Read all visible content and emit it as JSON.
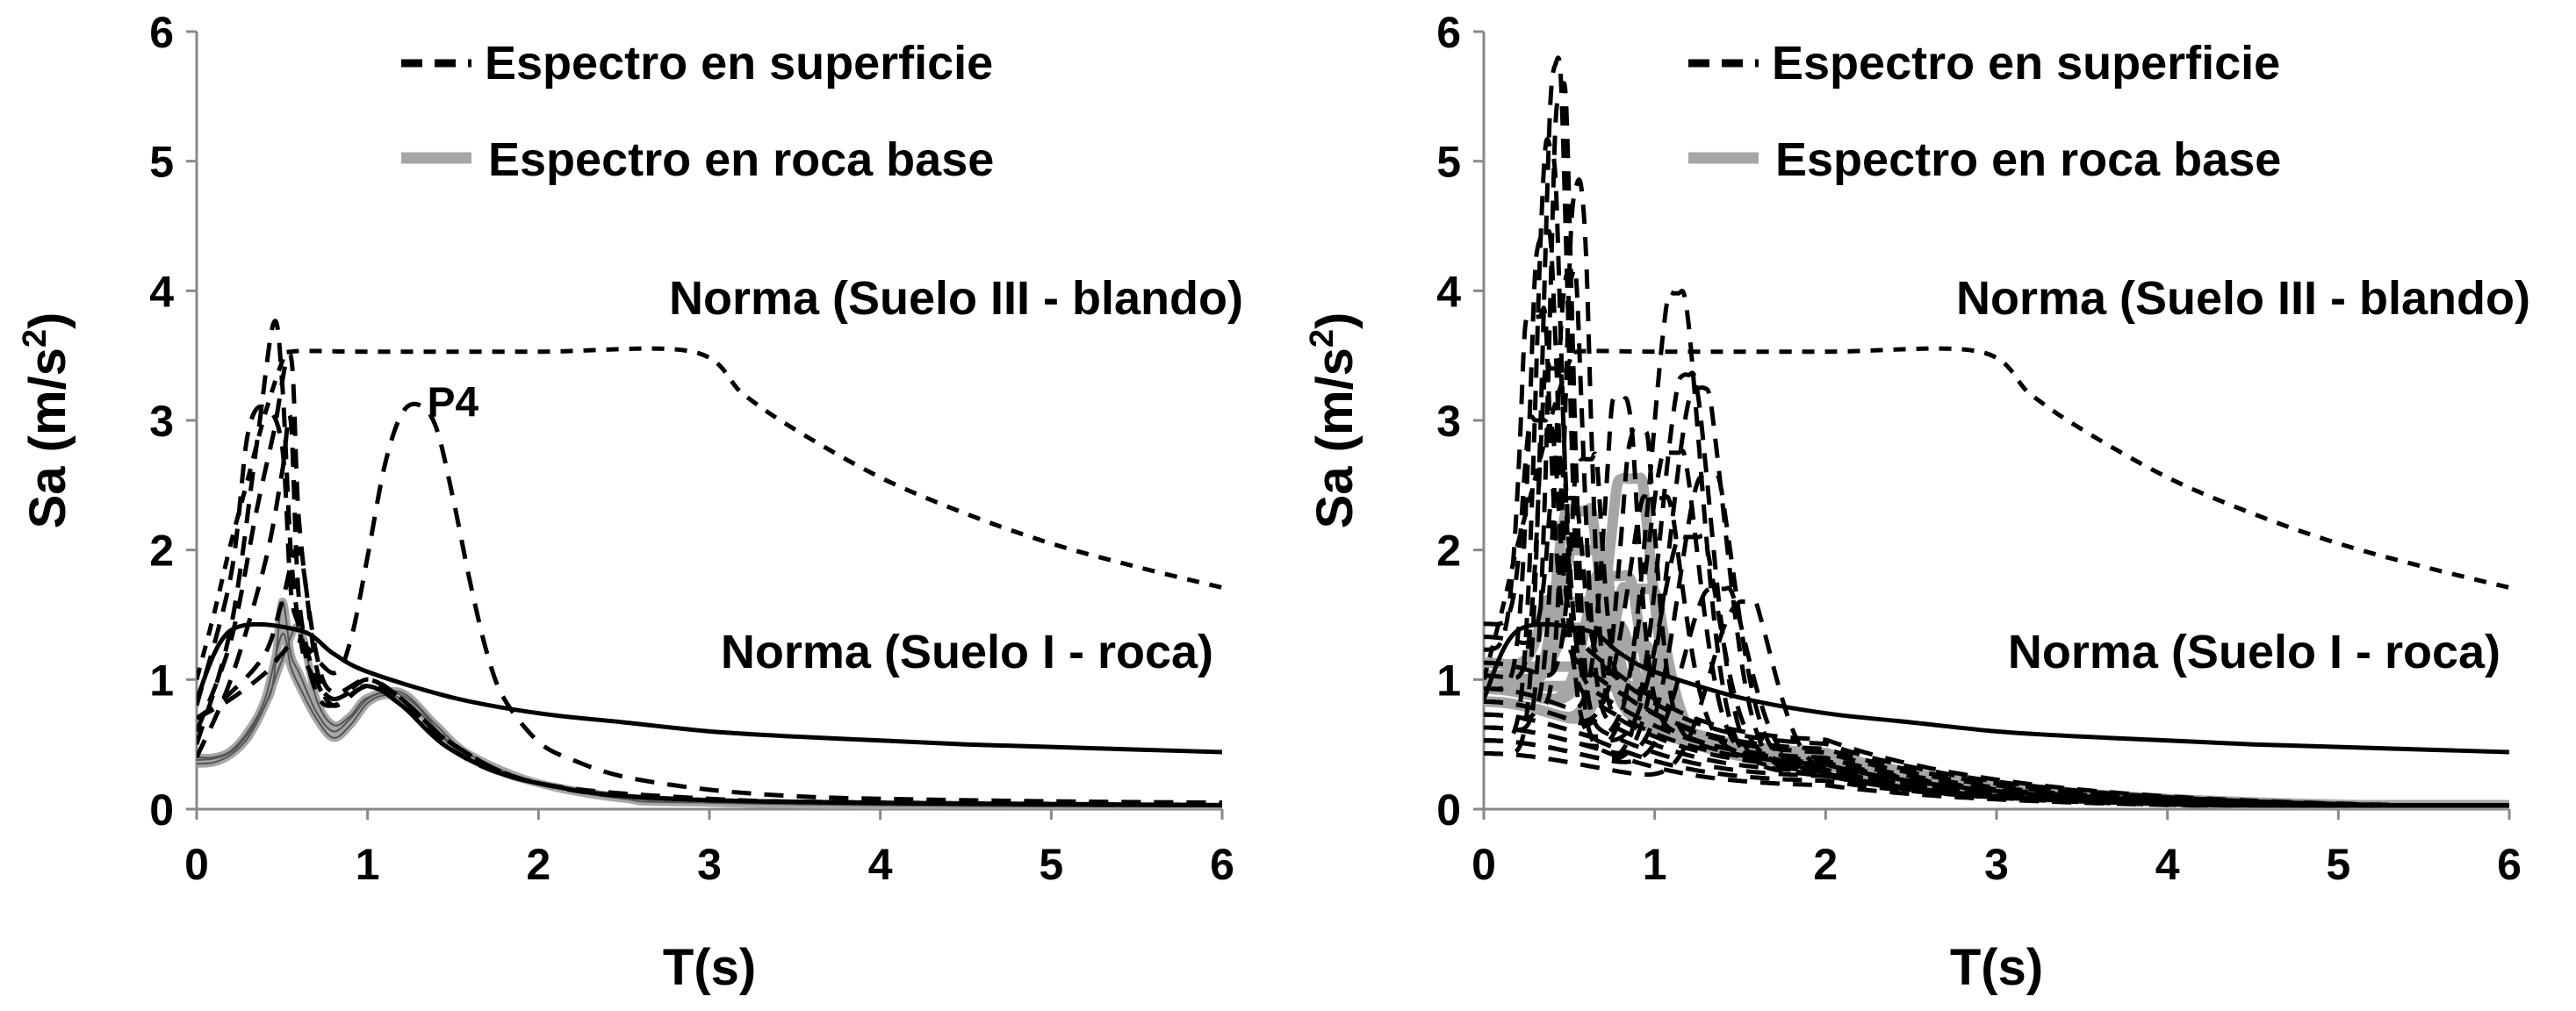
{
  "chart_data": [
    {
      "type": "line",
      "xlabel": "T(s)",
      "ylabel": "Sa (m/s²)",
      "ylabel_main": "Sa (m/s",
      "ylabel_sup": "2",
      "ylabel_end": ")",
      "xlim": [
        0,
        6
      ],
      "ylim": [
        0,
        6
      ],
      "xticks": [
        "0",
        "1",
        "2",
        "3",
        "4",
        "5",
        "6"
      ],
      "yticks": [
        "0",
        "1",
        "2",
        "3",
        "4",
        "5",
        "6"
      ],
      "legend": [
        {
          "label": "Espectro en superficie",
          "style": "dashed",
          "color": "#000000"
        },
        {
          "label": "Espectro en roca base",
          "style": "solid",
          "color": "#a6a6a6"
        }
      ],
      "legend_position": "top-right",
      "annotations": [
        {
          "text": "Norma (Suelo III - blando)",
          "x": 3.1,
          "y": 3.78
        },
        {
          "text": "Norma (Suelo I - roca)",
          "x": 3.9,
          "y": 1.05
        },
        {
          "text": "P4",
          "x": 1.4,
          "y": 2.95
        }
      ],
      "norma_suelo_III": {
        "x": [
          0,
          0.1,
          0.2,
          0.3,
          0.4,
          0.5,
          0.55,
          1.0,
          2.0,
          2.9,
          3.2,
          3.5,
          4.0,
          4.5,
          5.0,
          5.5,
          6.0
        ],
        "y": [
          1.0,
          1.5,
          2.05,
          2.55,
          3.05,
          3.45,
          3.53,
          3.53,
          3.53,
          3.53,
          3.2,
          2.93,
          2.56,
          2.28,
          2.05,
          1.87,
          1.71
        ]
      },
      "norma_suelo_I": {
        "x": [
          0,
          0.2,
          0.6,
          0.8,
          1.0,
          1.5,
          2.0,
          2.5,
          3.0,
          3.5,
          4.0,
          4.5,
          5.0,
          5.5,
          6.0
        ],
        "y": [
          0.85,
          1.38,
          1.38,
          1.2,
          1.06,
          0.86,
          0.74,
          0.67,
          0.6,
          0.56,
          0.53,
          0.5,
          0.48,
          0.46,
          0.44
        ]
      },
      "series": [
        {
          "style": "surface",
          "x": [
            0,
            0.2,
            0.35,
            0.45,
            0.5,
            0.55,
            0.6,
            0.65,
            0.8,
            1.0,
            1.2,
            1.5,
            2.0,
            3.0,
            4.0,
            6.0
          ],
          "y": [
            0.5,
            1.4,
            2.8,
            3.75,
            3.3,
            2.0,
            1.4,
            1.1,
            0.85,
            1.0,
            0.85,
            0.5,
            0.2,
            0.08,
            0.05,
            0.03
          ]
        },
        {
          "style": "surface",
          "x": [
            0,
            0.2,
            0.3,
            0.4,
            0.5,
            0.55,
            0.6,
            0.7,
            0.8,
            1.0,
            1.2,
            1.5,
            2.0,
            3.0,
            6.0
          ],
          "y": [
            0.8,
            1.8,
            2.9,
            3.1,
            2.8,
            1.7,
            1.4,
            0.9,
            0.8,
            0.95,
            0.85,
            0.45,
            0.2,
            0.07,
            0.03
          ]
        },
        {
          "style": "surface",
          "x": [
            0,
            0.2,
            0.35,
            0.45,
            0.55,
            0.6,
            0.7,
            0.8,
            1.0,
            1.2,
            1.5,
            2.0,
            3.0,
            6.0
          ],
          "y": [
            0.6,
            1.3,
            2.3,
            2.9,
            3.5,
            2.2,
            1.2,
            0.9,
            1.0,
            0.85,
            0.5,
            0.2,
            0.07,
            0.03
          ]
        },
        {
          "style": "surface",
          "x": [
            0,
            0.2,
            0.4,
            0.5,
            0.55,
            0.6,
            0.7,
            0.8,
            1.0,
            1.2,
            1.5,
            2.0,
            3.0,
            6.0
          ],
          "y": [
            0.4,
            1.0,
            1.9,
            2.6,
            3.0,
            1.6,
            1.0,
            0.85,
            0.95,
            0.8,
            0.45,
            0.2,
            0.07,
            0.03
          ]
        },
        {
          "style": "surface",
          "x": [
            0,
            0.2,
            0.4,
            0.5,
            0.6,
            0.7,
            0.8,
            1.0,
            1.2,
            1.5,
            2.0,
            3.0,
            6.0
          ],
          "y": [
            0.7,
            0.9,
            1.2,
            1.6,
            2.0,
            1.1,
            0.8,
            0.95,
            0.8,
            0.45,
            0.2,
            0.07,
            0.03
          ]
        },
        {
          "style": "surface",
          "label": "P4",
          "x": [
            0,
            0.2,
            0.4,
            0.5,
            0.6,
            0.8,
            0.9,
            1.0,
            1.1,
            1.2,
            1.3,
            1.4,
            1.5,
            1.6,
            1.7,
            1.8,
            2.0,
            2.2,
            2.5,
            3.0,
            3.5,
            4.0,
            5.0,
            6.0
          ],
          "y": [
            0.7,
            0.85,
            1.05,
            1.2,
            1.3,
            1.05,
            1.3,
            1.95,
            2.65,
            3.05,
            3.12,
            2.95,
            2.4,
            1.75,
            1.2,
            0.85,
            0.52,
            0.38,
            0.25,
            0.15,
            0.1,
            0.08,
            0.06,
            0.05
          ]
        },
        {
          "style": "rock",
          "x": [
            0,
            0.1,
            0.2,
            0.3,
            0.4,
            0.45,
            0.5,
            0.55,
            0.6,
            0.7,
            0.8,
            0.9,
            1.0,
            1.1,
            1.2,
            1.3,
            1.4,
            1.5,
            1.7,
            2.0,
            2.5,
            3.0,
            3.5,
            4.0,
            5.0,
            6.0
          ],
          "y": [
            0.35,
            0.36,
            0.42,
            0.55,
            0.8,
            1.0,
            1.6,
            1.2,
            1.05,
            0.75,
            0.6,
            0.7,
            0.85,
            0.9,
            0.88,
            0.78,
            0.62,
            0.5,
            0.35,
            0.2,
            0.09,
            0.05,
            0.04,
            0.03,
            0.02,
            0.02
          ]
        },
        {
          "style": "rock",
          "x": [
            0,
            0.1,
            0.2,
            0.3,
            0.4,
            0.5,
            0.55,
            0.6,
            0.7,
            0.8,
            0.9,
            1.0,
            1.1,
            1.2,
            1.3,
            1.5,
            1.7,
            2.0,
            2.5,
            3.0,
            4.0,
            6.0
          ],
          "y": [
            0.4,
            0.4,
            0.45,
            0.6,
            0.85,
            1.35,
            1.1,
            0.95,
            0.7,
            0.55,
            0.65,
            0.82,
            0.88,
            0.85,
            0.75,
            0.48,
            0.33,
            0.2,
            0.09,
            0.05,
            0.03,
            0.02
          ]
        },
        {
          "style": "rock",
          "x": [
            0,
            0.1,
            0.2,
            0.3,
            0.4,
            0.5,
            0.6,
            0.7,
            0.8,
            0.9,
            1.0,
            1.2,
            1.4,
            1.6,
            2.0,
            2.5,
            3.0,
            6.0
          ],
          "y": [
            0.38,
            0.39,
            0.44,
            0.58,
            0.8,
            1.15,
            1.4,
            0.85,
            0.65,
            0.72,
            0.86,
            0.9,
            0.65,
            0.42,
            0.2,
            0.08,
            0.05,
            0.02
          ]
        }
      ]
    },
    {
      "type": "line",
      "xlabel": "T(s)",
      "ylabel": "Sa (m/s²)",
      "ylabel_main": "Sa (m/s",
      "ylabel_sup": "2",
      "ylabel_end": ")",
      "xlim": [
        0,
        6
      ],
      "ylim": [
        0,
        6
      ],
      "xticks": [
        "0",
        "1",
        "2",
        "3",
        "4",
        "5",
        "6"
      ],
      "yticks": [
        "0",
        "1",
        "2",
        "3",
        "4",
        "5",
        "6"
      ],
      "legend": [
        {
          "label": "Espectro en superficie",
          "style": "dashed",
          "color": "#000000"
        },
        {
          "label": "Espectro en roca base",
          "style": "solid",
          "color": "#a6a6a6"
        }
      ],
      "legend_position": "top-right",
      "annotations": [
        {
          "text": "Norma (Suelo III - blando)",
          "x": 3.1,
          "y": 3.78
        },
        {
          "text": "Norma (Suelo I - roca)",
          "x": 3.9,
          "y": 1.05
        }
      ],
      "norma_suelo_III": {
        "x": [
          0,
          0.1,
          0.2,
          0.3,
          0.4,
          0.5,
          0.55,
          1.0,
          2.0,
          2.9,
          3.2,
          3.5,
          4.0,
          4.5,
          5.0,
          5.5,
          6.0
        ],
        "y": [
          1.0,
          1.5,
          2.05,
          2.55,
          3.05,
          3.45,
          3.53,
          3.53,
          3.53,
          3.53,
          3.2,
          2.93,
          2.56,
          2.28,
          2.05,
          1.87,
          1.71
        ]
      },
      "norma_suelo_I": {
        "x": [
          0,
          0.2,
          0.6,
          0.8,
          1.0,
          1.5,
          2.0,
          2.5,
          3.0,
          3.5,
          4.0,
          4.5,
          5.0,
          5.5,
          6.0
        ],
        "y": [
          0.85,
          1.38,
          1.38,
          1.2,
          1.06,
          0.86,
          0.74,
          0.67,
          0.6,
          0.56,
          0.53,
          0.5,
          0.48,
          0.46,
          0.44
        ]
      },
      "surface_peaks": [
        {
          "T": 0.42,
          "A": 5.55,
          "w": 0.1,
          "b": 0.4
        },
        {
          "T": 0.45,
          "A": 5.3,
          "w": 0.09,
          "b": 0.6
        },
        {
          "T": 0.38,
          "A": 4.9,
          "w": 0.1,
          "b": 0.5
        },
        {
          "T": 0.55,
          "A": 4.6,
          "w": 0.09,
          "b": 0.8
        },
        {
          "T": 0.35,
          "A": 4.2,
          "w": 0.1,
          "b": 0.9
        },
        {
          "T": 0.3,
          "A": 3.6,
          "w": 0.1,
          "b": 1.2
        },
        {
          "T": 0.5,
          "A": 3.9,
          "w": 0.1,
          "b": 0.7
        },
        {
          "T": 0.4,
          "A": 3.2,
          "w": 0.09,
          "b": 1.0
        },
        {
          "T": 0.33,
          "A": 2.8,
          "w": 0.1,
          "b": 1.4
        },
        {
          "T": 0.6,
          "A": 2.5,
          "w": 0.1,
          "b": 1.1
        },
        {
          "T": 0.47,
          "A": 2.2,
          "w": 0.1,
          "b": 1.3
        },
        {
          "T": 0.8,
          "A": 2.95,
          "w": 0.12,
          "b": 0.9
        },
        {
          "T": 0.9,
          "A": 2.7,
          "w": 0.13,
          "b": 0.8
        },
        {
          "T": 1.12,
          "A": 3.78,
          "w": 0.2,
          "b": 0.6
        },
        {
          "T": 1.18,
          "A": 3.15,
          "w": 0.2,
          "b": 0.5
        },
        {
          "T": 1.25,
          "A": 3.05,
          "w": 0.22,
          "b": 0.5
        },
        {
          "T": 1.1,
          "A": 2.55,
          "w": 0.2,
          "b": 0.7
        },
        {
          "T": 1.3,
          "A": 2.35,
          "w": 0.22,
          "b": 0.6
        },
        {
          "T": 1.0,
          "A": 2.2,
          "w": 0.2,
          "b": 0.8
        },
        {
          "T": 1.35,
          "A": 1.5,
          "w": 0.25,
          "b": 0.5
        },
        {
          "T": 1.5,
          "A": 1.4,
          "w": 0.25,
          "b": 0.4
        },
        {
          "T": 1.2,
          "A": 1.9,
          "w": 0.22,
          "b": 0.7
        }
      ],
      "rock_peaks": [
        {
          "T": 0.55,
          "A": 2.1,
          "w": 0.14,
          "b": 0.9
        },
        {
          "T": 0.85,
          "A": 2.35,
          "w": 0.16,
          "b": 0.8
        },
        {
          "T": 0.6,
          "A": 1.8,
          "w": 0.15,
          "b": 1.0
        },
        {
          "T": 0.75,
          "A": 1.6,
          "w": 0.17,
          "b": 0.9
        },
        {
          "T": 0.5,
          "A": 1.4,
          "w": 0.15,
          "b": 1.1
        },
        {
          "T": 0.9,
          "A": 1.5,
          "w": 0.18,
          "b": 0.8
        },
        {
          "T": 0.65,
          "A": 1.2,
          "w": 0.2,
          "b": 1.0
        },
        {
          "T": 0.55,
          "A": 0.9,
          "w": 0.22,
          "b": 1.0
        },
        {
          "T": 0.7,
          "A": 0.75,
          "w": 0.25,
          "b": 1.0
        },
        {
          "T": 0.8,
          "A": 1.05,
          "w": 0.2,
          "b": 0.9
        }
      ]
    }
  ]
}
